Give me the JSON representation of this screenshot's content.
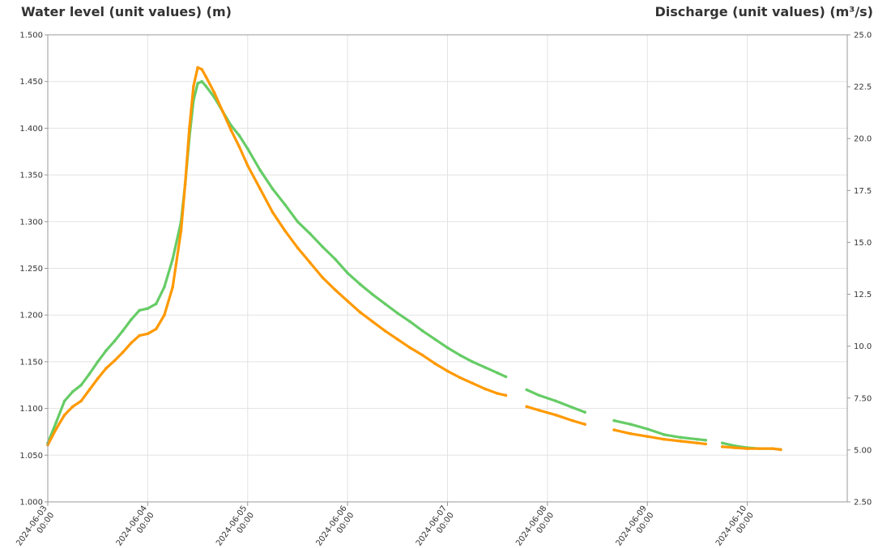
{
  "chart_data": {
    "type": "line",
    "title": "",
    "ylabel": "Water level (unit values) (m)",
    "y2label": "Discharge (unit values) (m³/s)",
    "ylim": [
      1.0,
      1.5
    ],
    "y2lim": [
      2.5,
      25.0
    ],
    "y_ticks": [
      "1.000",
      "1.050",
      "1.100",
      "1.150",
      "1.200",
      "1.250",
      "1.300",
      "1.350",
      "1.400",
      "1.450",
      "1.500"
    ],
    "y2_ticks": [
      "2.50",
      "5.00",
      "7.50",
      "10.0",
      "12.5",
      "15.0",
      "17.5",
      "20.0",
      "22.5",
      "25.0"
    ],
    "x_ticks": [
      {
        "date": "2024-06-03",
        "time": "00:00"
      },
      {
        "date": "2024-06-04",
        "time": "00:00"
      },
      {
        "date": "2024-06-05",
        "time": "00:00"
      },
      {
        "date": "2024-06-06",
        "time": "00:00"
      },
      {
        "date": "2024-06-07",
        "time": "00:00"
      },
      {
        "date": "2024-06-08",
        "time": "00:00"
      },
      {
        "date": "2024-06-09",
        "time": "00:00"
      },
      {
        "date": "2024-06-10",
        "time": "00:00"
      }
    ],
    "xlim": [
      "2024-06-03 00:00",
      "2024-06-11 00:00"
    ],
    "grid": true,
    "series": [
      {
        "color": "#66cc66",
        "axis": "left",
        "segments": [
          [
            [
              "2024-06-03 00:00",
              1.063
            ],
            [
              "2024-06-03 02:00",
              1.085
            ],
            [
              "2024-06-03 04:00",
              1.108
            ],
            [
              "2024-06-03 06:00",
              1.118
            ],
            [
              "2024-06-03 08:00",
              1.125
            ],
            [
              "2024-06-03 10:00",
              1.137
            ],
            [
              "2024-06-03 12:00",
              1.15
            ],
            [
              "2024-06-03 14:00",
              1.162
            ],
            [
              "2024-06-03 16:00",
              1.172
            ],
            [
              "2024-06-03 18:00",
              1.183
            ],
            [
              "2024-06-03 20:00",
              1.195
            ],
            [
              "2024-06-03 22:00",
              1.205
            ],
            [
              "2024-06-04 00:00",
              1.207
            ],
            [
              "2024-06-04 02:00",
              1.212
            ],
            [
              "2024-06-04 04:00",
              1.23
            ],
            [
              "2024-06-04 06:00",
              1.26
            ],
            [
              "2024-06-04 08:00",
              1.3
            ],
            [
              "2024-06-04 09:00",
              1.34
            ],
            [
              "2024-06-04 10:00",
              1.39
            ],
            [
              "2024-06-04 11:00",
              1.43
            ],
            [
              "2024-06-04 12:00",
              1.448
            ],
            [
              "2024-06-04 13:00",
              1.45
            ],
            [
              "2024-06-04 14:00",
              1.445
            ],
            [
              "2024-06-04 16:00",
              1.433
            ],
            [
              "2024-06-04 18:00",
              1.418
            ],
            [
              "2024-06-04 20:00",
              1.403
            ],
            [
              "2024-06-04 22:00",
              1.392
            ],
            [
              "2024-06-05 00:00",
              1.378
            ],
            [
              "2024-06-05 03:00",
              1.355
            ],
            [
              "2024-06-05 06:00",
              1.335
            ],
            [
              "2024-06-05 09:00",
              1.318
            ],
            [
              "2024-06-05 12:00",
              1.3
            ],
            [
              "2024-06-05 15:00",
              1.287
            ],
            [
              "2024-06-05 18:00",
              1.273
            ],
            [
              "2024-06-05 21:00",
              1.26
            ],
            [
              "2024-06-06 00:00",
              1.245
            ],
            [
              "2024-06-06 03:00",
              1.233
            ],
            [
              "2024-06-06 06:00",
              1.222
            ],
            [
              "2024-06-06 09:00",
              1.212
            ],
            [
              "2024-06-06 12:00",
              1.202
            ],
            [
              "2024-06-06 15:00",
              1.193
            ],
            [
              "2024-06-06 18:00",
              1.183
            ],
            [
              "2024-06-06 21:00",
              1.174
            ],
            [
              "2024-06-07 00:00",
              1.165
            ],
            [
              "2024-06-07 03:00",
              1.157
            ],
            [
              "2024-06-07 06:00",
              1.15
            ],
            [
              "2024-06-07 09:00",
              1.144
            ],
            [
              "2024-06-07 12:00",
              1.138
            ],
            [
              "2024-06-07 14:00",
              1.134
            ]
          ],
          [
            [
              "2024-06-07 19:00",
              1.12
            ],
            [
              "2024-06-07 22:00",
              1.114
            ],
            [
              "2024-06-08 02:00",
              1.108
            ],
            [
              "2024-06-08 06:00",
              1.101
            ],
            [
              "2024-06-08 09:00",
              1.096
            ]
          ],
          [
            [
              "2024-06-08 16:00",
              1.087
            ],
            [
              "2024-06-08 20:00",
              1.083
            ],
            [
              "2024-06-09 00:00",
              1.078
            ],
            [
              "2024-06-09 04:00",
              1.072
            ],
            [
              "2024-06-09 08:00",
              1.069
            ],
            [
              "2024-06-09 12:00",
              1.067
            ],
            [
              "2024-06-09 14:00",
              1.066
            ]
          ],
          [
            [
              "2024-06-09 18:00",
              1.063
            ],
            [
              "2024-06-09 21:00",
              1.06
            ],
            [
              "2024-06-10 00:00",
              1.058
            ],
            [
              "2024-06-10 03:00",
              1.057
            ],
            [
              "2024-06-10 06:00",
              1.057
            ],
            [
              "2024-06-10 08:00",
              1.056
            ]
          ]
        ]
      },
      {
        "color": "#ff9900",
        "axis": "left",
        "segments": [
          [
            [
              "2024-06-03 00:00",
              1.061
            ],
            [
              "2024-06-03 02:00",
              1.078
            ],
            [
              "2024-06-03 04:00",
              1.093
            ],
            [
              "2024-06-03 06:00",
              1.102
            ],
            [
              "2024-06-03 08:00",
              1.108
            ],
            [
              "2024-06-03 10:00",
              1.12
            ],
            [
              "2024-06-03 12:00",
              1.132
            ],
            [
              "2024-06-03 14:00",
              1.143
            ],
            [
              "2024-06-03 16:00",
              1.151
            ],
            [
              "2024-06-03 18:00",
              1.16
            ],
            [
              "2024-06-03 20:00",
              1.17
            ],
            [
              "2024-06-03 22:00",
              1.178
            ],
            [
              "2024-06-04 00:00",
              1.18
            ],
            [
              "2024-06-04 02:00",
              1.185
            ],
            [
              "2024-06-04 04:00",
              1.2
            ],
            [
              "2024-06-04 06:00",
              1.23
            ],
            [
              "2024-06-04 08:00",
              1.29
            ],
            [
              "2024-06-04 09:00",
              1.34
            ],
            [
              "2024-06-04 10:00",
              1.4
            ],
            [
              "2024-06-04 11:00",
              1.445
            ],
            [
              "2024-06-04 12:00",
              1.465
            ],
            [
              "2024-06-04 13:00",
              1.463
            ],
            [
              "2024-06-04 14:00",
              1.455
            ],
            [
              "2024-06-04 16:00",
              1.438
            ],
            [
              "2024-06-04 18:00",
              1.418
            ],
            [
              "2024-06-04 20:00",
              1.398
            ],
            [
              "2024-06-04 22:00",
              1.38
            ],
            [
              "2024-06-05 00:00",
              1.36
            ],
            [
              "2024-06-05 03:00",
              1.335
            ],
            [
              "2024-06-05 06:00",
              1.31
            ],
            [
              "2024-06-05 09:00",
              1.29
            ],
            [
              "2024-06-05 12:00",
              1.272
            ],
            [
              "2024-06-05 15:00",
              1.256
            ],
            [
              "2024-06-05 18:00",
              1.24
            ],
            [
              "2024-06-05 21:00",
              1.227
            ],
            [
              "2024-06-06 00:00",
              1.215
            ],
            [
              "2024-06-06 03:00",
              1.203
            ],
            [
              "2024-06-06 06:00",
              1.193
            ],
            [
              "2024-06-06 09:00",
              1.183
            ],
            [
              "2024-06-06 12:00",
              1.174
            ],
            [
              "2024-06-06 15:00",
              1.165
            ],
            [
              "2024-06-06 18:00",
              1.157
            ],
            [
              "2024-06-06 21:00",
              1.148
            ],
            [
              "2024-06-07 00:00",
              1.14
            ],
            [
              "2024-06-07 03:00",
              1.133
            ],
            [
              "2024-06-07 06:00",
              1.127
            ],
            [
              "2024-06-07 09:00",
              1.121
            ],
            [
              "2024-06-07 12:00",
              1.116
            ],
            [
              "2024-06-07 14:00",
              1.114
            ]
          ],
          [
            [
              "2024-06-07 19:00",
              1.102
            ],
            [
              "2024-06-07 22:00",
              1.098
            ],
            [
              "2024-06-08 02:00",
              1.093
            ],
            [
              "2024-06-08 06:00",
              1.087
            ],
            [
              "2024-06-08 09:00",
              1.083
            ]
          ],
          [
            [
              "2024-06-08 16:00",
              1.077
            ],
            [
              "2024-06-08 20:00",
              1.073
            ],
            [
              "2024-06-09 00:00",
              1.07
            ],
            [
              "2024-06-09 04:00",
              1.067
            ],
            [
              "2024-06-09 08:00",
              1.065
            ],
            [
              "2024-06-09 12:00",
              1.063
            ],
            [
              "2024-06-09 14:00",
              1.062
            ]
          ],
          [
            [
              "2024-06-09 18:00",
              1.059
            ],
            [
              "2024-06-09 21:00",
              1.058
            ],
            [
              "2024-06-10 00:00",
              1.057
            ],
            [
              "2024-06-10 03:00",
              1.057
            ],
            [
              "2024-06-10 06:00",
              1.057
            ],
            [
              "2024-06-10 08:00",
              1.056
            ]
          ]
        ]
      }
    ]
  }
}
